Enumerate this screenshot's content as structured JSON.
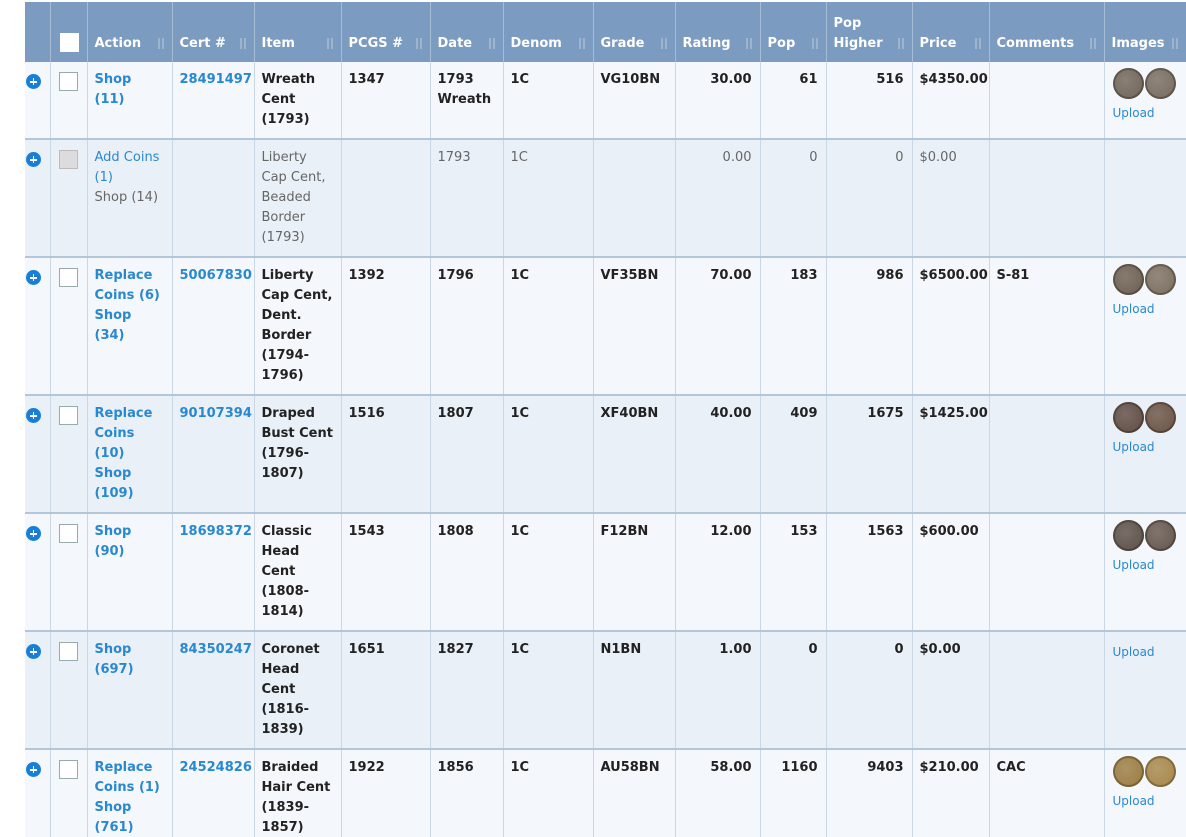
{
  "table": {
    "headers": [
      "Action",
      "Cert #",
      "Item",
      "PCGS #",
      "Date",
      "Denom",
      "Grade",
      "Rating",
      "Pop",
      "Pop Higher",
      "Price",
      "Comments",
      "Images"
    ],
    "rows": [
      {
        "owned": true,
        "action": [
          "Shop (11)"
        ],
        "cert": "28491497",
        "item": "Wreath Cent (1793)",
        "pcgs": "1347",
        "date": "1793 Wreath",
        "denom": "1C",
        "grade": "VG10BN",
        "rating": "30.00",
        "pop": "61",
        "pop_higher": "516",
        "price": "$4350.00",
        "images": {
          "colors": [
            "#6e6255",
            "#75695b"
          ],
          "upload": "Upload"
        }
      },
      {
        "owned": false,
        "action": [
          "Add Coins (1)",
          "Shop (14)"
        ],
        "item": "Liberty Cap Cent, Beaded Border (1793)",
        "date": "1793",
        "denom": "1C",
        "rating": "0.00",
        "pop": "0",
        "pop_higher": "0",
        "price": "$0.00"
      },
      {
        "owned": true,
        "action": [
          "Replace Coins (6)",
          "Shop (34)"
        ],
        "cert": "50067830",
        "item": "Liberty Cap Cent, Dent. Border (1794-1796)",
        "pcgs": "1392",
        "date": "1796",
        "denom": "1C",
        "grade": "VF35BN",
        "rating": "70.00",
        "pop": "183",
        "pop_higher": "986",
        "price": "$6500.00",
        "comments": "S-81",
        "images": {
          "colors": [
            "#6b5c4e",
            "#7a6c5c"
          ],
          "upload": "Upload"
        }
      },
      {
        "owned": true,
        "action": [
          "Replace Coins (10)",
          "Shop (109)"
        ],
        "cert": "90107394",
        "item": "Draped Bust Cent (1796-1807)",
        "pcgs": "1516",
        "date": "1807",
        "denom": "1C",
        "grade": "XF40BN",
        "rating": "40.00",
        "pop": "409",
        "pop_higher": "1675",
        "price": "$1425.00",
        "images": {
          "colors": [
            "#5e4a40",
            "#6a5142"
          ],
          "upload": "Upload"
        }
      },
      {
        "owned": true,
        "action": [
          "Shop (90)"
        ],
        "cert": "18698372",
        "item": "Classic Head Cent (1808-1814)",
        "pcgs": "1543",
        "date": "1808",
        "denom": "1C",
        "grade": "F12BN",
        "rating": "12.00",
        "pop": "153",
        "pop_higher": "1563",
        "price": "$600.00",
        "images": {
          "colors": [
            "#5a4d44",
            "#63544a"
          ],
          "upload": "Upload"
        }
      },
      {
        "owned": true,
        "action": [
          "Shop (697)"
        ],
        "cert": "84350247",
        "item": "Coronet Head Cent (1816-1839)",
        "pcgs": "1651",
        "date": "1827",
        "denom": "1C",
        "grade": "N1BN",
        "rating": "1.00",
        "pop": "0",
        "pop_higher": "0",
        "price": "$0.00",
        "images": {
          "upload": "Upload"
        }
      },
      {
        "owned": true,
        "action": [
          "Replace Coins (1)",
          "Shop (761)"
        ],
        "cert": "24524826",
        "item": "Braided Hair Cent (1839-1857)",
        "pcgs": "1922",
        "date": "1856",
        "denom": "1C",
        "grade": "AU58BN",
        "rating": "58.00",
        "pop": "1160",
        "pop_higher": "9403",
        "price": "$210.00",
        "comments": "CAC",
        "images": {
          "colors": [
            "#9a7a3e",
            "#a58546"
          ],
          "upload": "Upload"
        }
      }
    ]
  }
}
